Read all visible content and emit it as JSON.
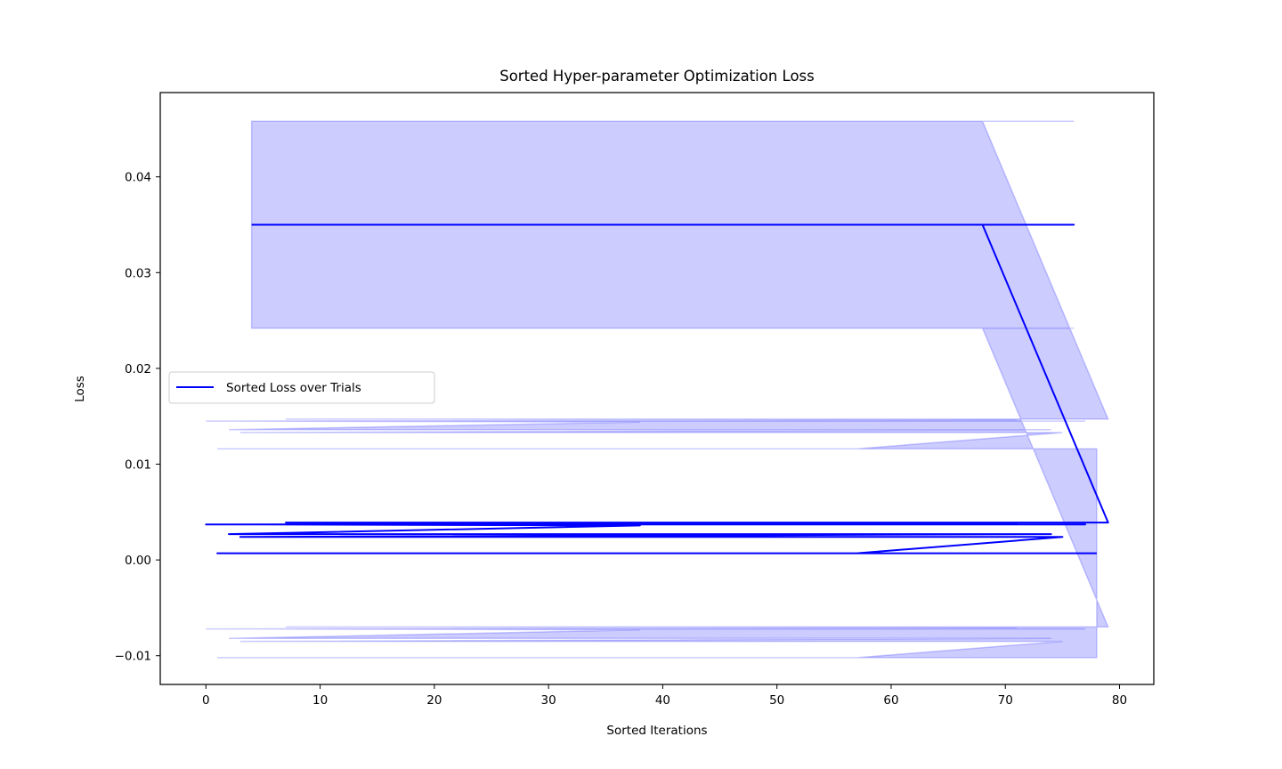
{
  "chart_data": {
    "type": "line",
    "title": "Sorted Hyper-parameter Optimization Loss",
    "xlabel": "Sorted Iterations",
    "ylabel": "Loss",
    "xlim": [
      -4,
      83
    ],
    "ylim": [
      -0.013,
      0.0488
    ],
    "xticks": [
      0,
      10,
      20,
      30,
      40,
      50,
      60,
      70,
      80
    ],
    "yticks": [
      -0.01,
      0.0,
      0.01,
      0.02,
      0.03,
      0.04
    ],
    "ytick_labels": [
      "−0.01",
      "0.00",
      "0.01",
      "0.02",
      "0.03",
      "0.04"
    ],
    "legend": {
      "position": "center-left",
      "entries": [
        "Sorted Loss over Trials"
      ]
    },
    "grid": false,
    "colors": {
      "line": "#0000ff",
      "band": "#0000ff"
    },
    "series": [
      {
        "name": "Sorted Loss over Trials",
        "style": "line",
        "points": [
          [
            4,
            0.035
          ],
          [
            76,
            0.035
          ],
          [
            12,
            0.035
          ],
          [
            68,
            0.035
          ],
          [
            60,
            0.035
          ],
          [
            68,
            0.035
          ],
          [
            79,
            0.0039
          ],
          [
            7,
            0.0039
          ],
          [
            72,
            0.0039
          ],
          [
            15,
            0.0039
          ],
          [
            71,
            0.0038
          ],
          [
            0,
            0.0037
          ],
          [
            77,
            0.0037
          ],
          [
            5,
            0.0037
          ],
          [
            38,
            0.0036
          ],
          [
            2,
            0.0027
          ],
          [
            74,
            0.0027
          ],
          [
            3,
            0.0024
          ],
          [
            75,
            0.0024
          ],
          [
            57,
            0.0007
          ],
          [
            1,
            0.0007
          ],
          [
            78,
            0.0007
          ]
        ],
        "band_upper": [
          0.0458,
          0.0458,
          0.0458,
          0.0458,
          0.0458,
          0.0458,
          0.0147,
          0.0147,
          0.0147,
          0.0147,
          0.0146,
          0.0145,
          0.0145,
          0.0145,
          0.0144,
          0.0136,
          0.0136,
          0.0133,
          0.0133,
          0.0116,
          0.0116,
          0.0116
        ],
        "band_lower": [
          0.0242,
          0.0242,
          0.0242,
          0.0242,
          0.0242,
          0.0242,
          -0.007,
          -0.007,
          -0.007,
          -0.007,
          -0.0071,
          -0.0072,
          -0.0072,
          -0.0072,
          -0.0073,
          -0.0082,
          -0.0082,
          -0.0085,
          -0.0085,
          -0.0102,
          -0.0102,
          -0.0102
        ]
      }
    ]
  }
}
